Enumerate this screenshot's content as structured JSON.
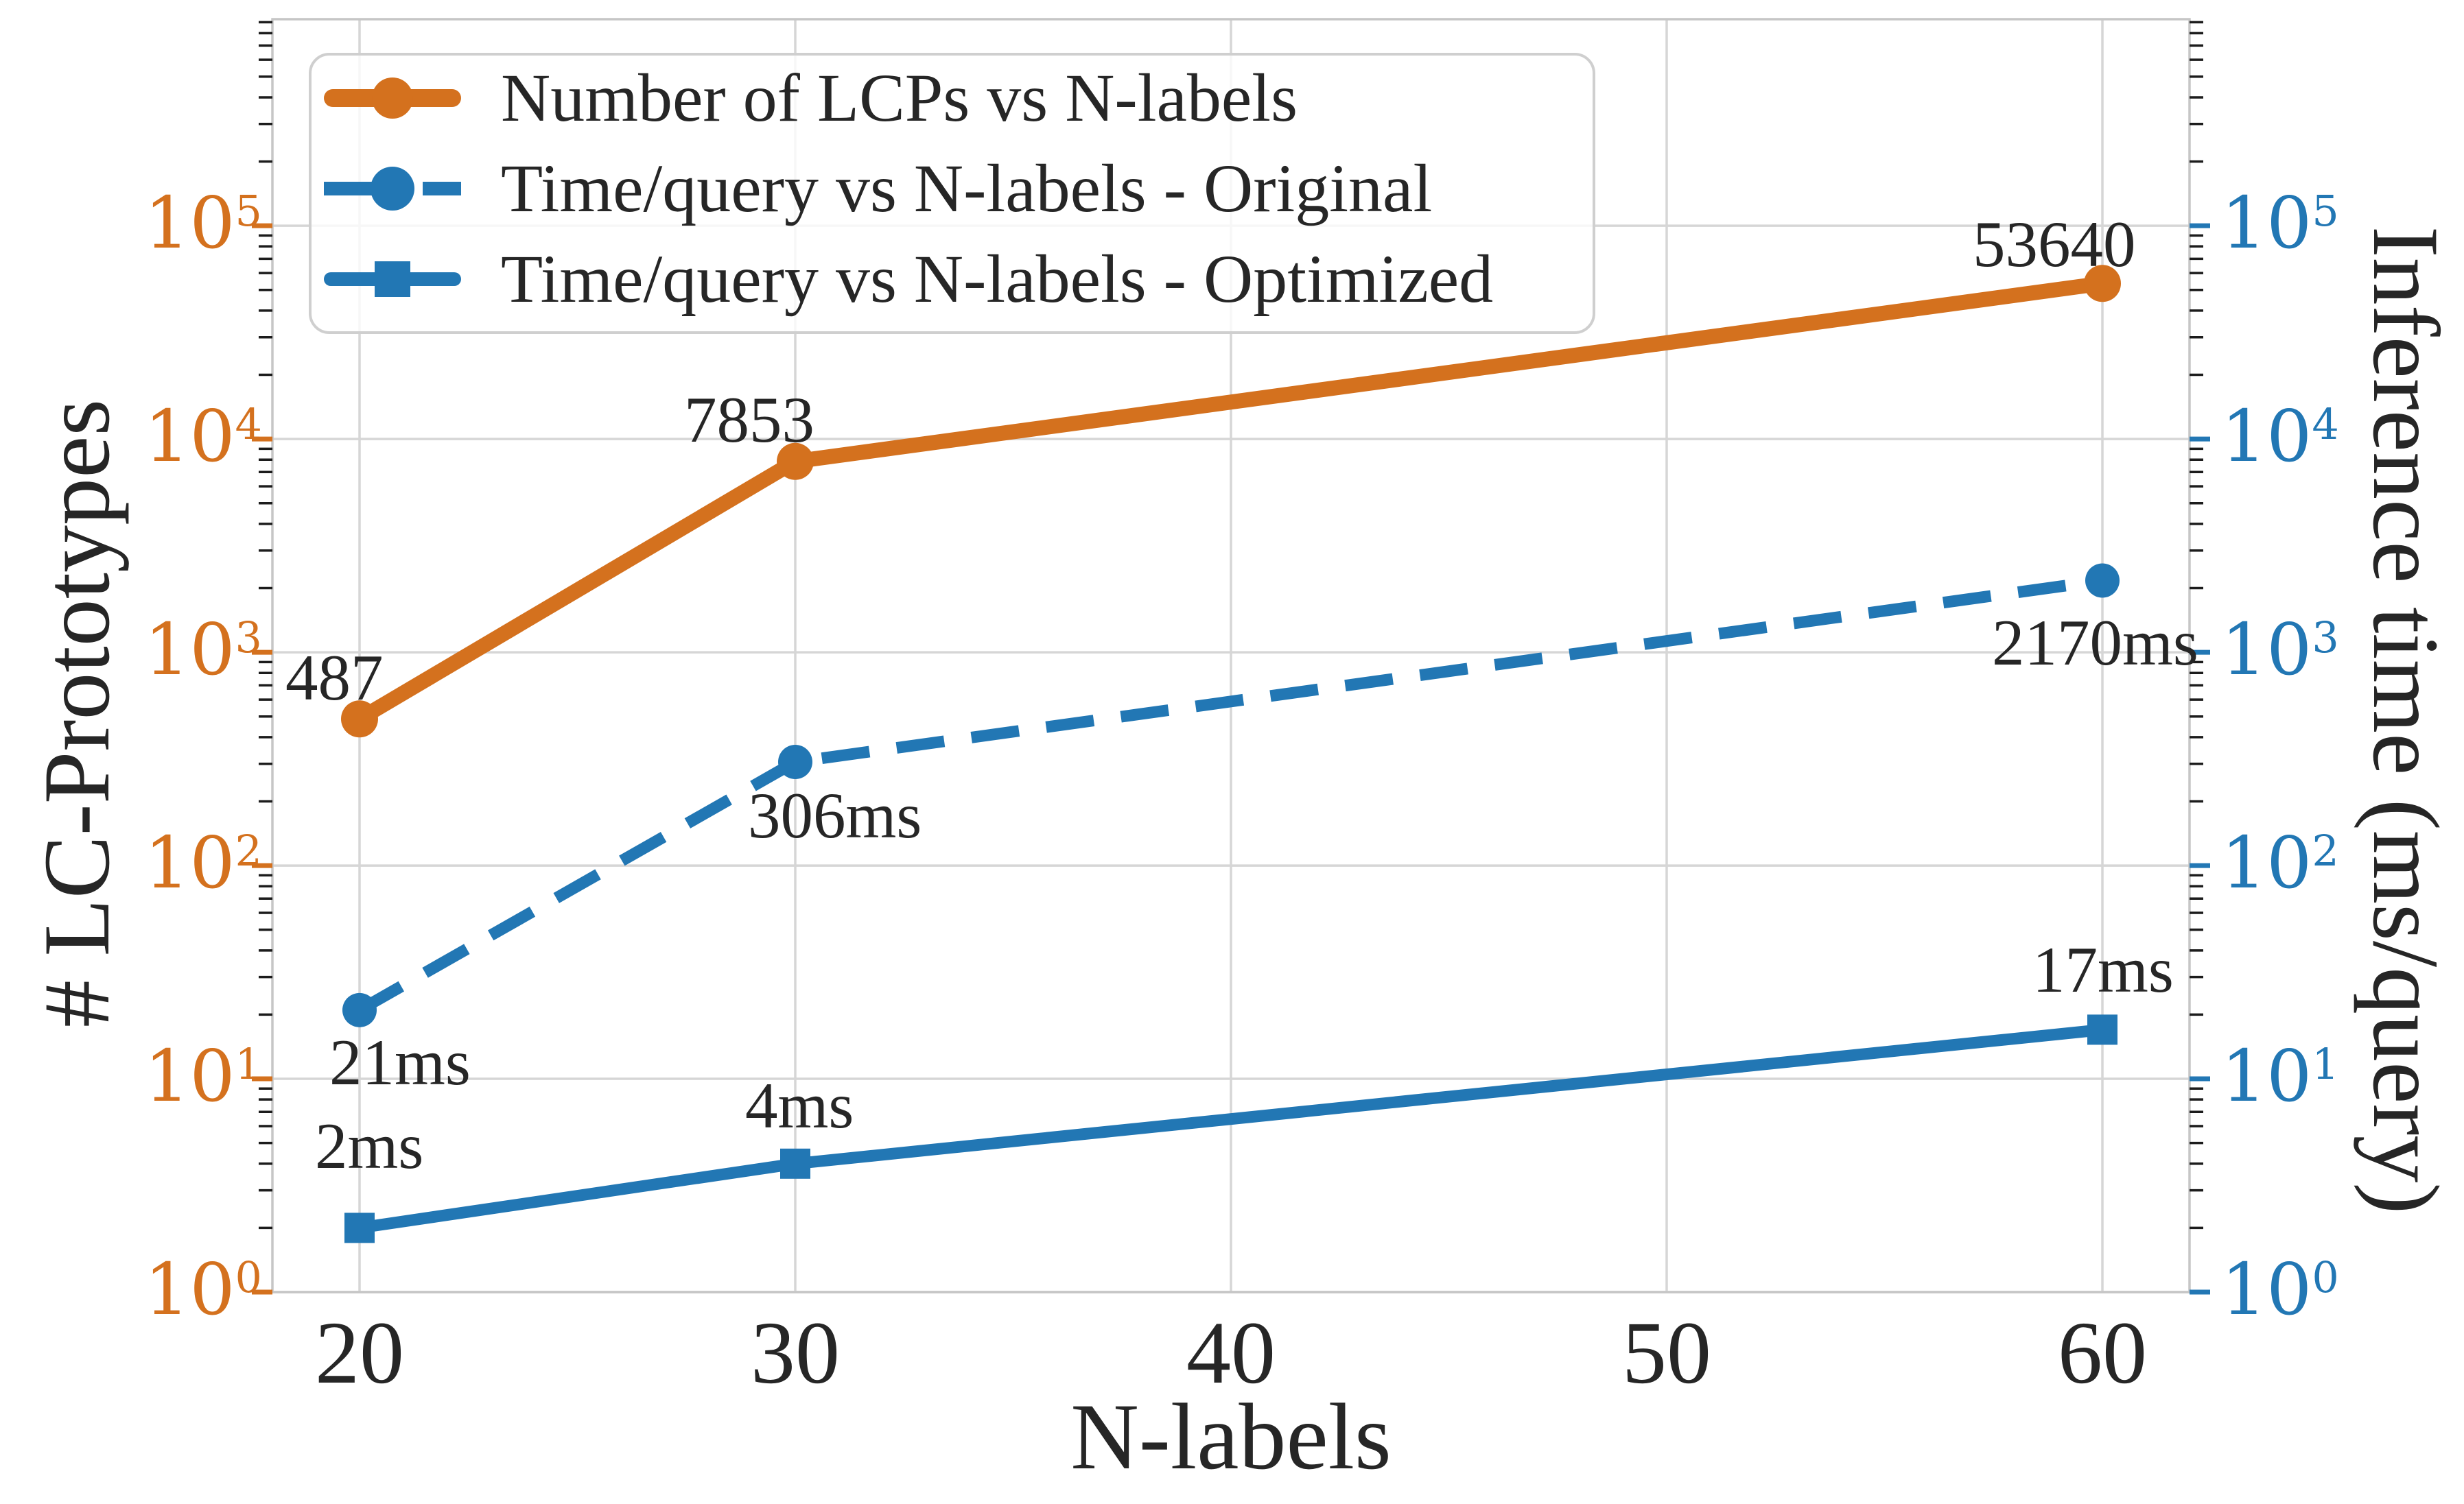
{
  "chart_data": {
    "type": "line",
    "title": "",
    "xlabel": "N-labels",
    "ylabel_left": "# LC-Prototypes",
    "ylabel_right": "Inference time (ms/query)",
    "x_scale": "linear",
    "y_scale": "log",
    "xlim": [
      18,
      62
    ],
    "ylim_left": [
      1,
      930000
    ],
    "ylim_right": [
      1,
      930000
    ],
    "x_ticks": [
      "20",
      "30",
      "40",
      "50",
      "60"
    ],
    "x_tick_values": [
      20,
      30,
      40,
      50,
      60
    ],
    "y_tick_base": "10",
    "y_tick_exponents_left": [
      5,
      4,
      3,
      2,
      1,
      0
    ],
    "y_tick_exponents_right": [
      5,
      4,
      3,
      2,
      1,
      0
    ],
    "grid": true,
    "legend_position": "upper left",
    "x": [
      20,
      30,
      60
    ],
    "series": [
      {
        "name": "Number of LCPs vs N-labels",
        "axis": "left",
        "color": "#D4711E",
        "line_style": "solid",
        "marker": "circle",
        "values": [
          487,
          7853,
          53640
        ],
        "point_labels": [
          "487",
          "7853",
          "53640"
        ]
      },
      {
        "name": "Time/query vs N-labels - Original",
        "axis": "right",
        "color": "#2277B4",
        "line_style": "dashed",
        "marker": "circle",
        "values": [
          21,
          306,
          2170
        ],
        "point_labels": [
          "21ms",
          "306ms",
          "2170ms"
        ]
      },
      {
        "name": "Time/query vs N-labels - Optimized",
        "axis": "right",
        "color": "#2277B4",
        "line_style": "solid",
        "marker": "square",
        "values": [
          2,
          4,
          17
        ],
        "point_labels": [
          "2ms",
          "4ms",
          "17ms"
        ]
      }
    ]
  },
  "colors": {
    "left_axis": "#D4711E",
    "right_axis": "#2277B4",
    "text": "#262626",
    "grid": "#D6D6D6",
    "spine": "#C6C6C6",
    "minor_tick": "#1C1C1C",
    "legend_border": "#CFCFCF"
  }
}
